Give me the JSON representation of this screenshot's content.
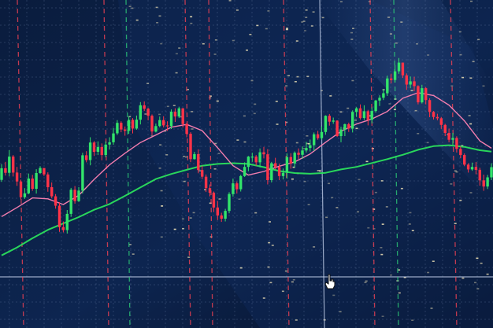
{
  "chart_data": {
    "type": "candlestick",
    "title": "",
    "xlabel": "",
    "ylabel": "",
    "grid": true,
    "legend": "none",
    "x": [
      0,
      1,
      2,
      3,
      4,
      5,
      6,
      7,
      8,
      9,
      10,
      11,
      12,
      13,
      14,
      15,
      16,
      17,
      18,
      19,
      20,
      21,
      22,
      23,
      24,
      25,
      26,
      27,
      28,
      29,
      30,
      31,
      32,
      33,
      34,
      35,
      36,
      37,
      38,
      39,
      40,
      41,
      42,
      43,
      44,
      45,
      46,
      47,
      48,
      49,
      50,
      51,
      52,
      53,
      54,
      55,
      56,
      57,
      58,
      59,
      60,
      61,
      62,
      63,
      64,
      65,
      66,
      67,
      68,
      69,
      70,
      71,
      72,
      73,
      74,
      75,
      76,
      77,
      78,
      79,
      80,
      81,
      82,
      83,
      84,
      85,
      86,
      87,
      88,
      89,
      90,
      91,
      92,
      93,
      94,
      95,
      96,
      97,
      98,
      99,
      100,
      101,
      102,
      103,
      104,
      105,
      106,
      107,
      108,
      109,
      110,
      111,
      112,
      113,
      114,
      115,
      116,
      117,
      118,
      119,
      120,
      121,
      122,
      123,
      124,
      125,
      126,
      127
    ],
    "xlim": [
      0,
      127
    ],
    "ylim": [
      0,
      100
    ],
    "candles": {
      "open": [
        40.1,
        45.2,
        43.2,
        50.3,
        43.3,
        39.4,
        32.5,
        34.2,
        40.7,
        36.2,
        43.1,
        45.3,
        42.5,
        36.9,
        32.9,
        28.8,
        19.4,
        18.1,
        25.2,
        35.8,
        30.8,
        35.4,
        50.9,
        48.8,
        56.5,
        52.4,
        54.5,
        51.0,
        55.6,
        56.6,
        60.5,
        65.1,
        62.2,
        61.6,
        66.4,
        62.6,
        66.5,
        72.8,
        71.3,
        68.2,
        61.3,
        63.7,
        66.3,
        64.0,
        63.7,
        70.0,
        67.9,
        71.5,
        64.6,
        60.3,
        49.2,
        51.4,
        44.4,
        41.5,
        36.5,
        34.5,
        28.0,
        24.5,
        23.1,
        26.5,
        33.9,
        38.6,
        36.0,
        41.8,
        45.8,
        50.3,
        50.3,
        47.8,
        52.2,
        51.3,
        40.0,
        47.4,
        45.7,
        41.8,
        43.2,
        50.1,
        47.3,
        52.0,
        51.1,
        53.0,
        54.1,
        55.3,
        60.1,
        58.4,
        61.1,
        68.2,
        65.6,
        66.1,
        59.3,
        62.2,
        64.5,
        62.6,
        69.9,
        71.5,
        67.2,
        70.2,
        66.4,
        70.3,
        74.9,
        76.1,
        78.1,
        84.6,
        83.9,
        87.7,
        91.5,
        85.9,
        81.9,
        83.3,
        81.2,
        74.1,
        80.3,
        75.1,
        69.9,
        67.7,
        67.1,
        64.2,
        60.7,
        57.7,
        58.5,
        53.7,
        51.0,
        46.8,
        44.7,
        45.8,
        44.5,
        39.9,
        37.2,
        41.2
      ],
      "close": [
        45.2,
        43.2,
        50.3,
        43.3,
        39.4,
        32.5,
        34.2,
        40.7,
        36.2,
        43.1,
        45.3,
        42.5,
        36.9,
        32.9,
        28.8,
        19.4,
        18.1,
        25.2,
        35.8,
        30.8,
        35.4,
        50.9,
        48.8,
        56.5,
        52.4,
        54.5,
        51.0,
        55.6,
        56.6,
        60.5,
        65.1,
        62.2,
        61.6,
        66.4,
        62.6,
        66.5,
        72.8,
        71.3,
        68.2,
        61.3,
        63.7,
        66.3,
        64.0,
        63.7,
        70.0,
        67.9,
        71.5,
        64.6,
        60.3,
        49.2,
        51.4,
        44.4,
        41.5,
        36.5,
        34.5,
        28.0,
        24.5,
        23.1,
        26.5,
        33.9,
        38.6,
        36.0,
        41.8,
        45.8,
        50.3,
        50.3,
        47.8,
        52.2,
        51.3,
        40.0,
        47.4,
        45.7,
        41.8,
        43.2,
        50.1,
        47.3,
        52.0,
        51.1,
        53.0,
        54.1,
        55.3,
        60.1,
        58.4,
        61.1,
        68.2,
        65.6,
        66.1,
        59.3,
        62.2,
        64.5,
        62.6,
        69.9,
        71.5,
        67.2,
        70.2,
        66.4,
        70.3,
        74.9,
        76.1,
        78.1,
        84.6,
        83.9,
        87.7,
        91.5,
        85.9,
        81.9,
        83.3,
        81.2,
        74.1,
        80.3,
        75.1,
        69.9,
        67.7,
        67.1,
        64.2,
        60.7,
        57.7,
        58.5,
        53.7,
        51.0,
        46.8,
        44.7,
        45.8,
        44.5,
        39.9,
        37.2,
        41.2,
        45.7
      ],
      "high": [
        47.0,
        48.0,
        53.1,
        51.0,
        45.8,
        40.2,
        36.5,
        42.9,
        42.3,
        44.8,
        46.1,
        45.3,
        43.4,
        39.0,
        33.9,
        30.3,
        21.9,
        26.9,
        36.6,
        37.4,
        36.9,
        52.0,
        52.7,
        58.8,
        57.1,
        57.0,
        56.1,
        57.0,
        58.8,
        62.9,
        66.3,
        65.8,
        63.5,
        67.9,
        67.2,
        68.3,
        74.2,
        74.5,
        71.7,
        68.8,
        64.8,
        67.9,
        68.0,
        65.8,
        71.0,
        71.5,
        72.2,
        71.6,
        65.2,
        61.0,
        52.4,
        53.5,
        46.3,
        42.5,
        38.1,
        35.0,
        30.8,
        25.7,
        27.4,
        34.7,
        40.7,
        39.4,
        42.3,
        47.8,
        50.6,
        52.0,
        51.0,
        53.9,
        54.6,
        53.6,
        48.0,
        49.8,
        47.2,
        45.1,
        51.7,
        51.8,
        52.6,
        53.9,
        54.8,
        56.8,
        57.8,
        60.9,
        61.6,
        63.6,
        68.4,
        69.0,
        67.4,
        66.2,
        63.4,
        64.8,
        65.2,
        70.6,
        72.0,
        73.2,
        72.8,
        70.8,
        71.9,
        75.2,
        77.2,
        79.9,
        85.8,
        86.7,
        90.4,
        93.5,
        91.5,
        86.8,
        85.4,
        85.3,
        81.6,
        81.8,
        80.8,
        75.9,
        70.3,
        69.1,
        67.7,
        64.7,
        62.6,
        60.7,
        59.2,
        54.8,
        51.7,
        47.4,
        47.7,
        47.9,
        45.4,
        42.4,
        42.3,
        47.4
      ],
      "low": [
        39.2,
        42.0,
        41.6,
        41.6,
        37.5,
        31.4,
        31.8,
        33.8,
        35.3,
        34.1,
        42.7,
        41.8,
        34.9,
        32.1,
        27.5,
        17.3,
        17.1,
        16.6,
        23.9,
        29.7,
        30.4,
        34.1,
        47.8,
        46.5,
        50.6,
        51.0,
        48.7,
        50.0,
        53.4,
        55.5,
        59.8,
        61.0,
        59.5,
        60.3,
        60.5,
        62.1,
        64.4,
        70.3,
        66.2,
        59.8,
        60.9,
        63.1,
        63.1,
        61.6,
        62.4,
        65.5,
        67.2,
        63.1,
        58.8,
        47.9,
        49.0,
        43.0,
        40.4,
        34.8,
        32.9,
        26.0,
        22.5,
        21.7,
        21.9,
        25.5,
        32.8,
        34.1,
        35.0,
        41.4,
        43.9,
        48.0,
        46.3,
        45.6,
        49.5,
        38.1,
        39.0,
        44.7,
        40.0,
        40.3,
        40.7,
        45.0,
        45.6,
        49.3,
        49.3,
        52.1,
        52.6,
        52.8,
        57.7,
        57.7,
        59.9,
        63.9,
        64.7,
        58.9,
        56.6,
        59.3,
        61.1,
        60.9,
        67.7,
        66.5,
        66.3,
        64.0,
        64.9,
        69.6,
        72.5,
        75.1,
        76.9,
        82.4,
        82.8,
        86.6,
        84.8,
        79.6,
        80.3,
        79.0,
        73.2,
        73.6,
        73.2,
        67.6,
        66.6,
        66.2,
        62.5,
        59.3,
        56.6,
        55.5,
        52.1,
        49.7,
        46.1,
        43.3,
        44.1,
        42.6,
        37.6,
        35.3,
        36.1,
        40.0
      ]
    },
    "series": [
      {
        "color": "#2be05c",
        "x": [
          0,
          4,
          8,
          12,
          16,
          20,
          24,
          28,
          32,
          36,
          40,
          44,
          48,
          52,
          56,
          60,
          64,
          68,
          72,
          76,
          80,
          84,
          88,
          92,
          96,
          100,
          104,
          108,
          112,
          116,
          120,
          124,
          127
        ],
        "values": [
          7.0,
          10.5,
          14.5,
          18.2,
          21.0,
          23.8,
          27.0,
          29.5,
          33.1,
          36.8,
          40.5,
          42.7,
          44.5,
          46.3,
          47.1,
          47.4,
          47.1,
          45.7,
          44.0,
          43.1,
          42.8,
          43.2,
          44.7,
          45.8,
          47.5,
          49.2,
          51.1,
          53.3,
          54.9,
          55.3,
          54.6,
          53.1,
          52.5
        ]
      },
      {
        "color": "#ff82b3",
        "x": [
          0,
          4,
          8,
          12,
          16,
          20,
          24,
          28,
          32,
          36,
          40,
          44,
          48,
          52,
          56,
          60,
          64,
          68,
          72,
          76,
          80,
          84,
          88,
          92,
          96,
          100,
          104,
          108,
          112,
          116,
          120,
          124,
          127
        ],
        "values": [
          24.0,
          28.0,
          32.2,
          31.8,
          29.3,
          33.3,
          40.3,
          46.7,
          51.8,
          56.5,
          59.8,
          63.2,
          64.4,
          61.7,
          54.2,
          46.3,
          42.2,
          43.8,
          46.1,
          48.0,
          51.5,
          56.6,
          61.4,
          64.6,
          66.8,
          70.1,
          75.9,
          78.3,
          77.1,
          72.9,
          66.0,
          57.2,
          54.0
        ]
      }
    ],
    "colors": {
      "up": "#32e46a",
      "down": "#ff3348",
      "grid": "#7f93bb",
      "dash_red": "#ff4455",
      "dash_green": "#2fd37a",
      "background": "#07152e"
    }
  },
  "icons": {
    "cursor": "hand-pointer-icon"
  }
}
